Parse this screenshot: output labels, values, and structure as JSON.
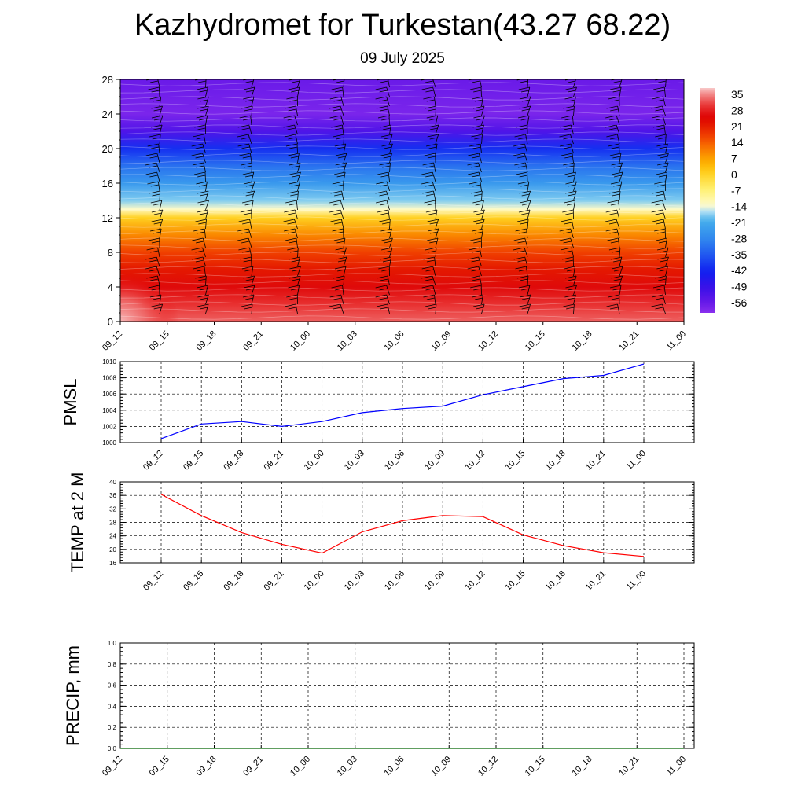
{
  "title": "Kazhydromet for Turkestan(43.27 68.22)",
  "subtitle": "09 July 2025",
  "chart_data": [
    {
      "type": "heatmap",
      "name": "vertical-section",
      "x_ticks": [
        "09_12",
        "09_15",
        "09_18",
        "09_21",
        "10_00",
        "10_03",
        "10_06",
        "10_09",
        "10_12",
        "10_15",
        "10_18",
        "10_21",
        "11_00"
      ],
      "y_ticks": [
        0,
        4,
        8,
        12,
        16,
        20,
        24,
        28
      ],
      "ylim": [
        0,
        28
      ],
      "colorbar_labels": [
        "35",
        "28",
        "21",
        "14",
        "7",
        "0",
        "-7",
        "-14",
        "-21",
        "-28",
        "-35",
        "-42",
        "-49",
        "-56"
      ],
      "value_range": [
        -60,
        38
      ],
      "temperature_by_level": {
        "levels": [
          0,
          2,
          4,
          6,
          8,
          10,
          12,
          13,
          14,
          16,
          18,
          20,
          22,
          24,
          26,
          28
        ],
        "values": [
          33,
          30,
          26,
          22,
          17,
          10,
          1,
          -13,
          -17,
          -24,
          -31,
          -40,
          -52,
          -58,
          -57,
          -56
        ]
      },
      "surface_warm_spot": {
        "x_index": 0,
        "level": 0,
        "value": 37
      },
      "colors": {
        "grid": "#ffffff",
        "barbs": "#000000",
        "border": "#000000"
      }
    },
    {
      "type": "line",
      "name": "pmsl",
      "ylabel": "PMSL",
      "x": [
        "09_12",
        "09_15",
        "09_18",
        "09_21",
        "10_00",
        "10_03",
        "10_06",
        "10_09",
        "10_12",
        "10_15",
        "10_18",
        "10_21",
        "11_00"
      ],
      "y_ticks": [
        "1000",
        "1002",
        "1004",
        "1006",
        "1008",
        "1010"
      ],
      "ylim": [
        1000,
        1010
      ],
      "series": [
        {
          "values": [
            1000.5,
            1002.3,
            1002.6,
            1002.0,
            1002.6,
            1003.7,
            1004.2,
            1004.5,
            1005.9,
            1006.9,
            1007.9,
            1008.3,
            1009.7
          ],
          "color": "#0000ff"
        }
      ],
      "grid": true
    },
    {
      "type": "line",
      "name": "temperature",
      "ylabel": "TEMP at 2 M",
      "x": [
        "09_12",
        "09_15",
        "09_18",
        "09_21",
        "10_00",
        "10_03",
        "10_06",
        "10_09",
        "10_12",
        "10_15",
        "10_18",
        "10_21",
        "11_00"
      ],
      "y_ticks": [
        "16",
        "20",
        "24",
        "28",
        "32",
        "36",
        "40"
      ],
      "ylim": [
        16,
        40
      ],
      "series": [
        {
          "values": [
            36.3,
            30.0,
            25.0,
            21.5,
            18.9,
            25.2,
            28.5,
            30.0,
            29.7,
            24.3,
            21.1,
            19.0,
            17.9
          ],
          "color": "#ff0000"
        }
      ],
      "grid": true
    },
    {
      "type": "line",
      "name": "precipitation",
      "ylabel": "PRECIP, mm",
      "x": [
        "09_12",
        "09_15",
        "09_18",
        "09_21",
        "10_00",
        "10_03",
        "10_06",
        "10_09",
        "10_12",
        "10_15",
        "10_18",
        "10_21",
        "11_00"
      ],
      "y_ticks": [
        "0.0",
        "0.2",
        "0.4",
        "0.6",
        "0.8",
        "1.0"
      ],
      "ylim": [
        0,
        1
      ],
      "series": [
        {
          "values": [
            0,
            0,
            0,
            0,
            0,
            0,
            0,
            0,
            0,
            0,
            0,
            0,
            0
          ],
          "color": "#006400"
        }
      ],
      "grid": true
    }
  ]
}
